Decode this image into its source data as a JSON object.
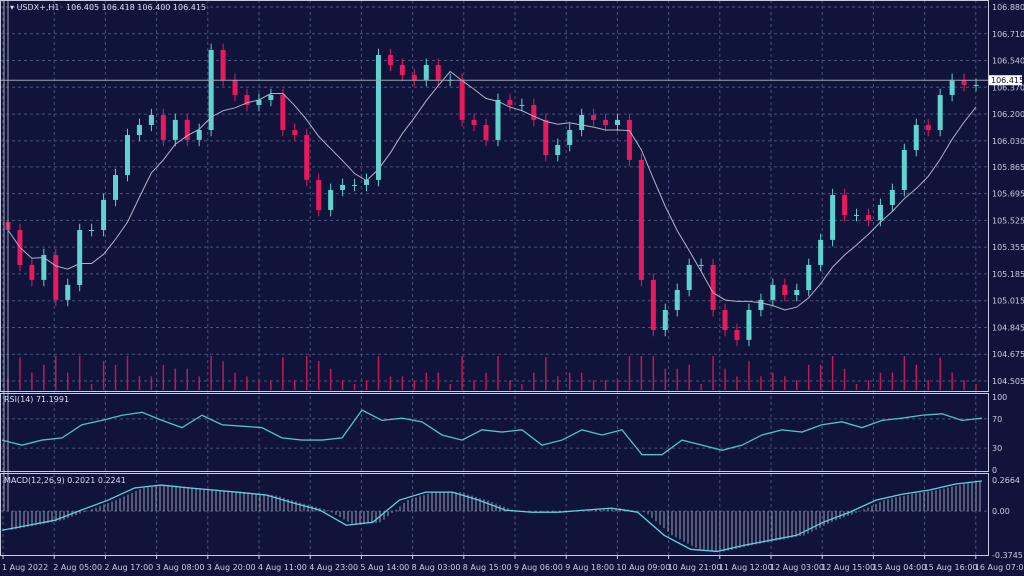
{
  "header": {
    "symbol_label": "USDX+,H1",
    "ohlc": "106.405 106.418 106.400 106.415"
  },
  "colors": {
    "background": "#11143a",
    "bull": "#5fd3cf",
    "bear": "#e8195e",
    "grid": "#4b5278",
    "ma": "#b0b4c8",
    "rsi": "#4fc3c8",
    "macd_line": "#5ed3e0",
    "macd_hist": "#9aa0b8",
    "volume": "#c0185a"
  },
  "chart_data": [
    {
      "type": "candlestick",
      "title": "USDX+,H1",
      "ylim": [
        104.505,
        106.88
      ],
      "y_ticks": [
        "106.880",
        "106.710",
        "106.540",
        "106.370",
        "106.200",
        "106.030",
        "105.865",
        "105.695",
        "105.525",
        "105.355",
        "105.185",
        "105.015",
        "104.845",
        "104.675",
        "104.505"
      ],
      "x_ticks": [
        "1 Aug 2022",
        "2 Aug 05:00",
        "2 Aug 17:00",
        "3 Aug 08:00",
        "3 Aug 20:00",
        "4 Aug 11:00",
        "4 Aug 23:00",
        "5 Aug 14:00",
        "8 Aug 03:00",
        "8 Aug 15:00",
        "9 Aug 06:00",
        "9 Aug 18:00",
        "10 Aug 09:00",
        "10 Aug 21:00",
        "11 Aug 12:00",
        "12 Aug 03:00",
        "12 Aug 15:00",
        "15 Aug 04:00",
        "15 Aug 16:00",
        "16 Aug 07:00"
      ],
      "current_price": "106.415",
      "overlay": "moving average",
      "grid": true,
      "closes": [
        105.464,
        105.242,
        105.147,
        105.305,
        105.02,
        105.115,
        105.464,
        105.464,
        105.655,
        105.813,
        106.067,
        106.131,
        106.194,
        106.036,
        106.163,
        106.036,
        106.099,
        106.607,
        106.417,
        106.321,
        106.258,
        106.29,
        106.321,
        106.099,
        106.067,
        105.782,
        105.591,
        105.718,
        105.75,
        105.75,
        105.782,
        106.575,
        106.512,
        106.448,
        106.417,
        106.512,
        106.417,
        106.417,
        106.163,
        106.131,
        106.036,
        106.29,
        106.258,
        106.258,
        106.163,
        105.94,
        106.004,
        106.099,
        106.194,
        106.163,
        106.131,
        106.163,
        105.909,
        105.147,
        104.829,
        104.956,
        105.083,
        105.242,
        105.242,
        104.956,
        104.829,
        104.766,
        104.956,
        105.02,
        105.115,
        105.051,
        105.083,
        105.242,
        105.401,
        105.686,
        105.559,
        105.559,
        105.528,
        105.623,
        105.718,
        105.972,
        106.131,
        106.099,
        106.321,
        106.417,
        106.385,
        106.385
      ]
    },
    {
      "type": "line",
      "title": "RSI(14) 71.1991",
      "ylim": [
        0,
        100
      ],
      "y_ticks": [
        "100",
        "70",
        "30",
        "0"
      ],
      "values": [
        41,
        34,
        41,
        44,
        62,
        68,
        75,
        79,
        68,
        58,
        75,
        62,
        60,
        58,
        44,
        41,
        41,
        44,
        82,
        68,
        71,
        66,
        48,
        41,
        55,
        52,
        55,
        34,
        41,
        55,
        48,
        55,
        21,
        21,
        41,
        34,
        27,
        34,
        48,
        55,
        52,
        62,
        66,
        58,
        68,
        71,
        75,
        77,
        68,
        71
      ]
    },
    {
      "type": "bar+line",
      "title": "MACD(12,26,9) 0.2021 0.2241",
      "ylim": [
        -0.3745,
        0.2664
      ],
      "y_ticks": [
        "0.2664",
        "0.00",
        "-0.3745"
      ],
      "values": [
        -0.163,
        -0.12,
        -0.077,
        0.01,
        0.094,
        0.198,
        0.223,
        0.2,
        0.18,
        0.16,
        0.137,
        0.07,
        0.009,
        -0.12,
        -0.095,
        0.094,
        0.163,
        0.163,
        0.094,
        0.009,
        -0.009,
        -0.009,
        0.009,
        0.026,
        -0.009,
        -0.206,
        -0.326,
        -0.344,
        -0.292,
        -0.249,
        -0.206,
        -0.095,
        -0.009,
        0.094,
        0.146,
        0.18,
        0.232,
        0.258
      ]
    }
  ]
}
